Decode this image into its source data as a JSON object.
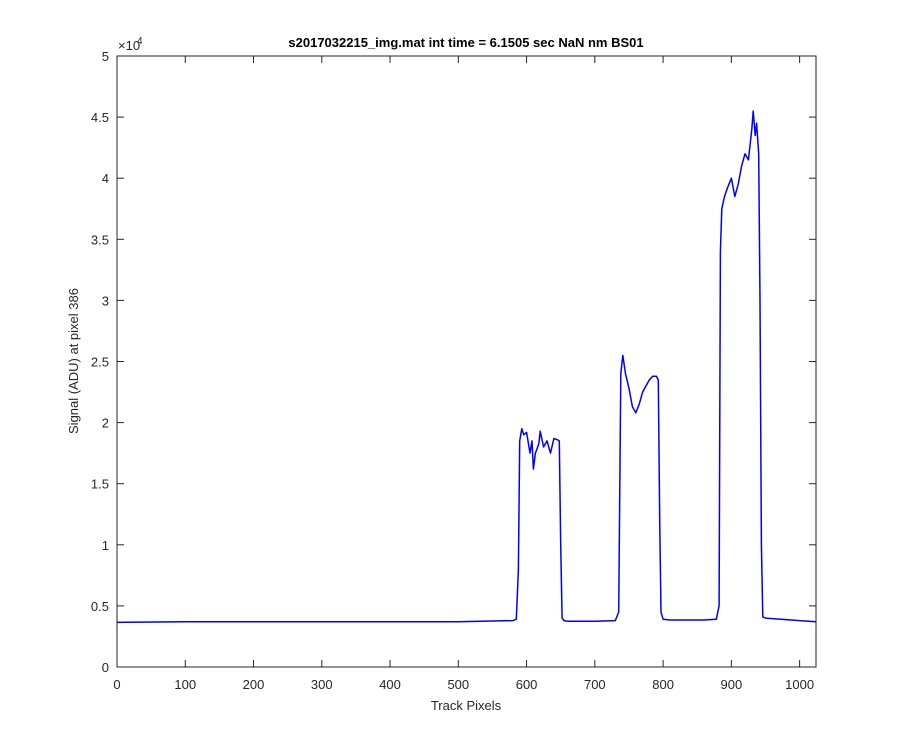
{
  "chart_data": {
    "type": "line",
    "title": "s2017032215_img.mat int time = 6.1505 sec  NaN nm BS01",
    "xlabel": "Track Pixels",
    "ylabel": "Signal (ADU) at pixel 386",
    "y_exponent_label": "×10",
    "y_exponent_power": "4",
    "xlim": [
      0,
      1024
    ],
    "ylim": [
      0,
      50000
    ],
    "xticks": [
      0,
      100,
      200,
      300,
      400,
      500,
      600,
      700,
      800,
      900,
      1000
    ],
    "xtick_labels": [
      "0",
      "100",
      "200",
      "300",
      "400",
      "500",
      "600",
      "700",
      "800",
      "900",
      "1000"
    ],
    "yticks": [
      0,
      5000,
      10000,
      15000,
      20000,
      25000,
      30000,
      35000,
      40000,
      45000,
      50000
    ],
    "ytick_labels": [
      "0",
      "0.5",
      "1",
      "1.5",
      "2",
      "2.5",
      "3",
      "3.5",
      "4",
      "4.5",
      "5"
    ],
    "grid": false,
    "box": true,
    "colors": {
      "series": "#0000ff",
      "axes": "#262626"
    },
    "series": [
      {
        "x": [
          0,
          100,
          200,
          300,
          400,
          500,
          580,
          585,
          588,
          590,
          593,
          596,
          600,
          605,
          608,
          610,
          613,
          615,
          618,
          620,
          625,
          630,
          635,
          640,
          645,
          648,
          650,
          652,
          655,
          660,
          700,
          730,
          735,
          738,
          741,
          745,
          750,
          755,
          760,
          765,
          770,
          775,
          780,
          785,
          790,
          793,
          795,
          797,
          800,
          810,
          860,
          878,
          882,
          884,
          886,
          890,
          895,
          900,
          905,
          910,
          915,
          920,
          925,
          930,
          932,
          935,
          937,
          940,
          942,
          944,
          946,
          950,
          1000,
          1024
        ],
        "y": [
          3650,
          3700,
          3700,
          3700,
          3700,
          3700,
          3800,
          3900,
          8000,
          18500,
          19500,
          19000,
          19200,
          17500,
          18500,
          16200,
          17500,
          17800,
          18300,
          19300,
          18000,
          18500,
          17500,
          18700,
          18600,
          18500,
          10000,
          4000,
          3800,
          3750,
          3750,
          3800,
          4500,
          24000,
          25500,
          24000,
          22800,
          21300,
          20800,
          21500,
          22500,
          23000,
          23500,
          23800,
          23800,
          23500,
          12000,
          4500,
          3900,
          3850,
          3850,
          3900,
          5000,
          34000,
          37500,
          38500,
          39300,
          40000,
          38500,
          39500,
          41000,
          42000,
          41500,
          44000,
          45500,
          43500,
          44500,
          42000,
          30000,
          10000,
          4100,
          4000,
          3800,
          3700
        ]
      }
    ]
  }
}
